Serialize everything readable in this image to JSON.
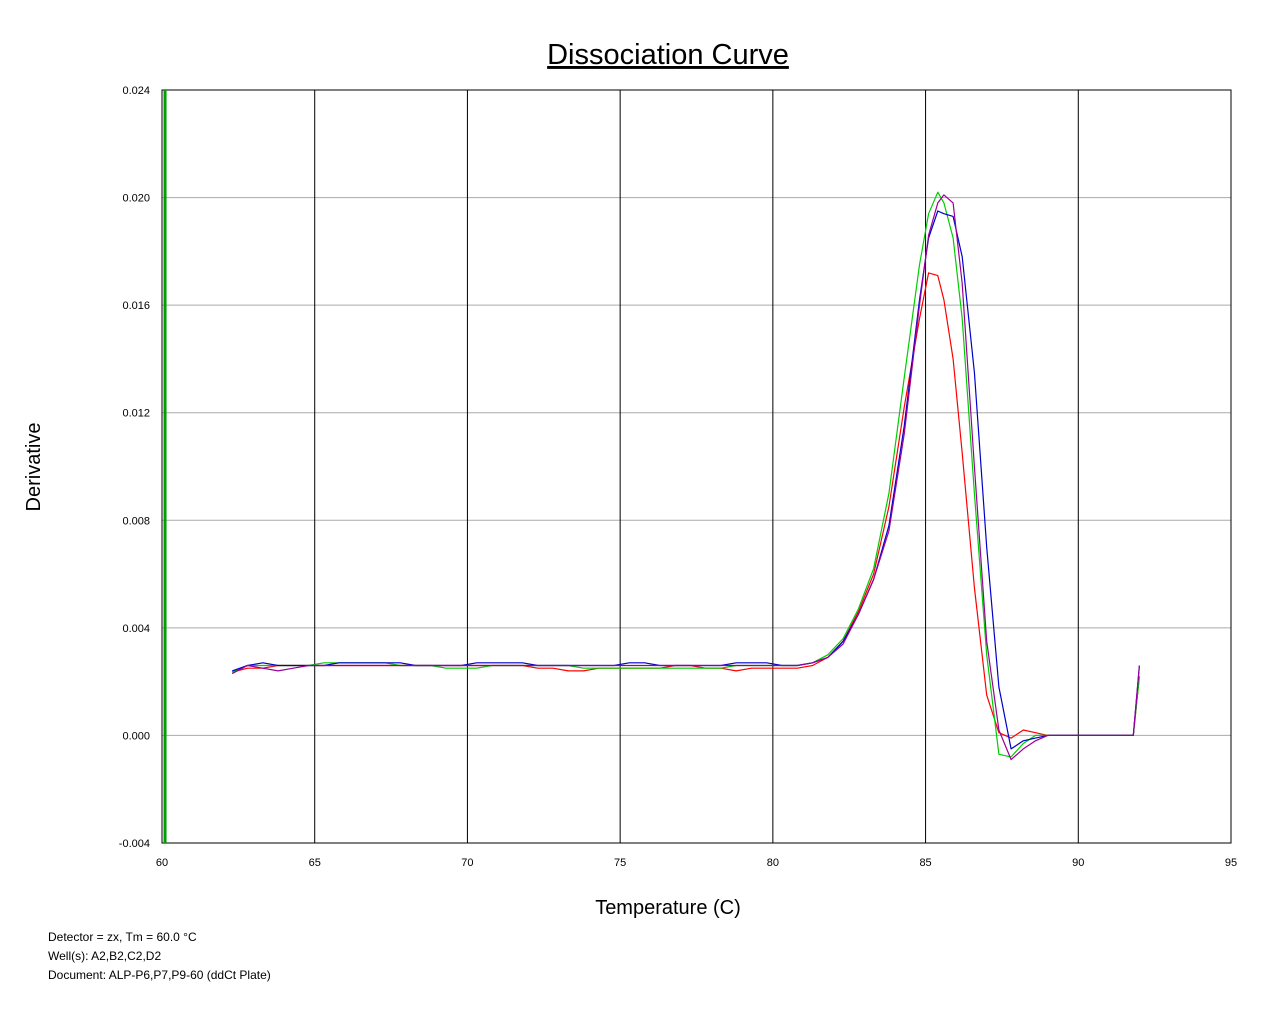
{
  "chart_data": {
    "type": "line",
    "title": "Dissociation Curve",
    "xlabel": "Temperature (C)",
    "ylabel": "Derivative",
    "xlim": [
      60,
      95
    ],
    "ylim": [
      -0.004,
      0.024
    ],
    "x_ticks": [
      60,
      65,
      70,
      75,
      80,
      85,
      90,
      95
    ],
    "x_tick_labels": [
      "60",
      "65",
      "70",
      "75",
      "80",
      "85",
      "90",
      "95"
    ],
    "y_ticks": [
      -0.004,
      0.0,
      0.004,
      0.008,
      0.012,
      0.016,
      0.02,
      0.024
    ],
    "y_tick_labels": [
      "-0.004",
      "0.000",
      "0.004",
      "0.008",
      "0.012",
      "0.016",
      "0.020",
      "0.024"
    ],
    "grid": true,
    "threshold_line": {
      "x": 60.1,
      "color": "#00a000"
    },
    "series": [
      {
        "color": "#ff0000",
        "x": [
          62.3,
          62.8,
          63.3,
          63.8,
          64.3,
          64.8,
          65.3,
          65.8,
          66.3,
          66.8,
          67.3,
          67.8,
          68.3,
          68.8,
          69.3,
          69.8,
          70.3,
          70.8,
          71.3,
          71.8,
          72.3,
          72.8,
          73.3,
          73.8,
          74.3,
          74.8,
          75.3,
          75.8,
          76.3,
          76.8,
          77.3,
          77.8,
          78.3,
          78.8,
          79.3,
          79.8,
          80.3,
          80.8,
          81.3,
          81.8,
          82.3,
          82.8,
          83.3,
          83.8,
          84.3,
          84.8,
          85.1,
          85.4,
          85.6,
          85.9,
          86.2,
          86.6,
          87.0,
          87.4,
          87.8,
          88.2,
          88.6,
          89.0,
          89.5,
          90.0,
          90.5,
          91.0,
          91.5,
          91.8,
          92.0
        ],
        "y": [
          0.00235,
          0.0025,
          0.0025,
          0.0026,
          0.0026,
          0.0026,
          0.0026,
          0.0026,
          0.0026,
          0.0026,
          0.0026,
          0.0026,
          0.0026,
          0.0026,
          0.0026,
          0.0026,
          0.0026,
          0.0026,
          0.0026,
          0.0026,
          0.0025,
          0.0025,
          0.0024,
          0.0024,
          0.0025,
          0.0025,
          0.0025,
          0.0025,
          0.0025,
          0.0026,
          0.0026,
          0.0025,
          0.0025,
          0.0024,
          0.0025,
          0.0025,
          0.0025,
          0.0025,
          0.0026,
          0.0029,
          0.0035,
          0.0046,
          0.006,
          0.0085,
          0.0122,
          0.0155,
          0.0172,
          0.0171,
          0.0162,
          0.014,
          0.0105,
          0.0055,
          0.0015,
          0.0001,
          -0.0001,
          0.0002,
          0.0001,
          0.0,
          0.0,
          0.0,
          0.0,
          0.0,
          0.0,
          0.0,
          0.0022
        ]
      },
      {
        "color": "#00cc00",
        "x": [
          62.3,
          62.8,
          63.3,
          63.8,
          64.3,
          64.8,
          65.3,
          65.8,
          66.3,
          66.8,
          67.3,
          67.8,
          68.3,
          68.8,
          69.3,
          69.8,
          70.3,
          70.8,
          71.3,
          71.8,
          72.3,
          72.8,
          73.3,
          73.8,
          74.3,
          74.8,
          75.3,
          75.8,
          76.3,
          76.8,
          77.3,
          77.8,
          78.3,
          78.8,
          79.3,
          79.8,
          80.3,
          80.8,
          81.3,
          81.8,
          82.3,
          82.8,
          83.3,
          83.8,
          84.3,
          84.8,
          85.1,
          85.4,
          85.6,
          85.9,
          86.2,
          86.6,
          87.0,
          87.4,
          87.8,
          88.2,
          88.6,
          89.0,
          89.5,
          90.0,
          90.5,
          91.0,
          91.5,
          91.8,
          92.0
        ],
        "y": [
          0.00235,
          0.0026,
          0.0026,
          0.0026,
          0.0026,
          0.0026,
          0.0027,
          0.0027,
          0.0027,
          0.0027,
          0.0027,
          0.0026,
          0.0026,
          0.0026,
          0.0025,
          0.0025,
          0.0025,
          0.0026,
          0.0026,
          0.0026,
          0.0026,
          0.0026,
          0.0026,
          0.0025,
          0.0025,
          0.0025,
          0.0025,
          0.0025,
          0.0025,
          0.0025,
          0.0025,
          0.0025,
          0.0025,
          0.0026,
          0.0026,
          0.0026,
          0.0026,
          0.0026,
          0.0027,
          0.003,
          0.0036,
          0.0047,
          0.0062,
          0.009,
          0.0133,
          0.0175,
          0.0194,
          0.0202,
          0.0198,
          0.0185,
          0.0155,
          0.009,
          0.003,
          -0.0007,
          -0.0008,
          -0.0003,
          0.0,
          0.0,
          0.0,
          0.0,
          0.0,
          0.0,
          0.0,
          0.0,
          0.0022
        ]
      },
      {
        "color": "#0000cc",
        "x": [
          62.3,
          62.8,
          63.3,
          63.8,
          64.3,
          64.8,
          65.3,
          65.8,
          66.3,
          66.8,
          67.3,
          67.8,
          68.3,
          68.8,
          69.3,
          69.8,
          70.3,
          70.8,
          71.3,
          71.8,
          72.3,
          72.8,
          73.3,
          73.8,
          74.3,
          74.8,
          75.3,
          75.8,
          76.3,
          76.8,
          77.3,
          77.8,
          78.3,
          78.8,
          79.3,
          79.8,
          80.3,
          80.8,
          81.3,
          81.8,
          82.3,
          82.8,
          83.3,
          83.8,
          84.3,
          84.8,
          85.1,
          85.4,
          85.6,
          85.9,
          86.2,
          86.6,
          87.0,
          87.4,
          87.8,
          88.2,
          88.6,
          89.0,
          89.5,
          90.0,
          90.5,
          91.0,
          91.5,
          91.8,
          92.0
        ],
        "y": [
          0.0024,
          0.0026,
          0.0027,
          0.0026,
          0.0026,
          0.0026,
          0.0026,
          0.0027,
          0.0027,
          0.0027,
          0.0027,
          0.0027,
          0.0026,
          0.0026,
          0.0026,
          0.0026,
          0.0027,
          0.0027,
          0.0027,
          0.0027,
          0.0026,
          0.0026,
          0.0026,
          0.0026,
          0.0026,
          0.0026,
          0.0027,
          0.0027,
          0.0026,
          0.0026,
          0.0026,
          0.0026,
          0.0026,
          0.0027,
          0.0027,
          0.0027,
          0.0026,
          0.0026,
          0.0027,
          0.0029,
          0.0035,
          0.0045,
          0.0058,
          0.0078,
          0.0115,
          0.0162,
          0.0185,
          0.0195,
          0.0194,
          0.0193,
          0.0178,
          0.0135,
          0.007,
          0.0018,
          -0.0005,
          -0.0002,
          -0.0001,
          0.0,
          0.0,
          0.0,
          0.0,
          0.0,
          0.0,
          0.0,
          0.0026
        ]
      },
      {
        "color": "#990099",
        "x": [
          62.3,
          62.8,
          63.3,
          63.8,
          64.3,
          64.8,
          65.3,
          65.8,
          66.3,
          66.8,
          67.3,
          67.8,
          68.3,
          68.8,
          69.3,
          69.8,
          70.3,
          70.8,
          71.3,
          71.8,
          72.3,
          72.8,
          73.3,
          73.8,
          74.3,
          74.8,
          75.3,
          75.8,
          76.3,
          76.8,
          77.3,
          77.8,
          78.3,
          78.8,
          79.3,
          79.8,
          80.3,
          80.8,
          81.3,
          81.8,
          82.3,
          82.8,
          83.3,
          83.8,
          84.3,
          84.8,
          85.1,
          85.4,
          85.6,
          85.9,
          86.2,
          86.6,
          87.0,
          87.4,
          87.8,
          88.2,
          88.6,
          89.0,
          89.5,
          90.0,
          90.5,
          91.0,
          91.5,
          91.8,
          92.0
        ],
        "y": [
          0.0023,
          0.0026,
          0.0025,
          0.0024,
          0.0025,
          0.0026,
          0.0026,
          0.0026,
          0.0026,
          0.0026,
          0.0026,
          0.0026,
          0.0026,
          0.0026,
          0.0026,
          0.0026,
          0.0026,
          0.0026,
          0.0026,
          0.0026,
          0.0026,
          0.0026,
          0.0026,
          0.0026,
          0.0026,
          0.0026,
          0.0026,
          0.0026,
          0.0026,
          0.0026,
          0.0026,
          0.0026,
          0.0026,
          0.0026,
          0.0026,
          0.0026,
          0.0026,
          0.0026,
          0.0027,
          0.0029,
          0.0034,
          0.0045,
          0.0058,
          0.0076,
          0.0112,
          0.016,
          0.0186,
          0.0198,
          0.0201,
          0.0198,
          0.0168,
          0.01,
          0.0035,
          0.0002,
          -0.0009,
          -0.0005,
          -0.0002,
          0.0,
          0.0,
          0.0,
          0.0,
          0.0,
          0.0,
          0.0,
          0.0026
        ]
      }
    ]
  },
  "footer": {
    "detector": "Detector = zx, Tm = 60.0 °C",
    "wells": "Well(s): A2,B2,C2,D2",
    "document": "Document: ALP-P6,P7,P9-60 (ddCt Plate)"
  }
}
